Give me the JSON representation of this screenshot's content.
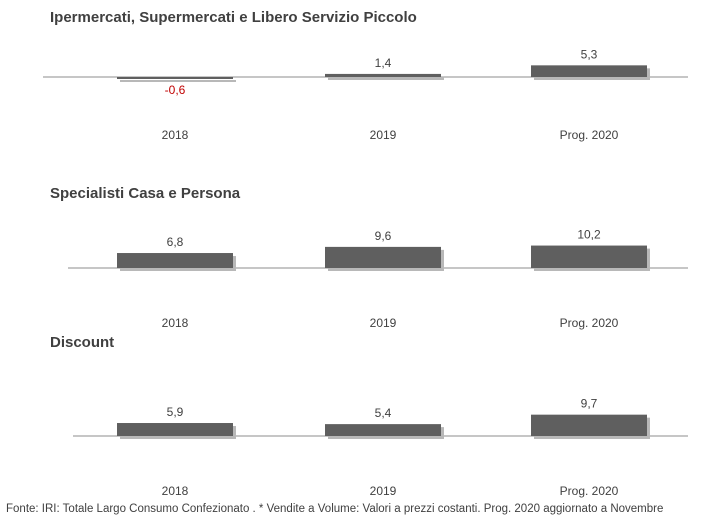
{
  "chart_data": [
    {
      "type": "bar",
      "title": "Ipermercati, Supermercati e Libero Servizio Piccolo",
      "categories": [
        "2018",
        "2019",
        "Prog. 2020"
      ],
      "values": [
        -0.6,
        1.4,
        5.3
      ],
      "value_labels": [
        "-0,6",
        "1,4",
        "5,3"
      ],
      "grid": false
    },
    {
      "type": "bar",
      "title": "Specialisti Casa e Persona",
      "categories": [
        "2018",
        "2019",
        "Prog. 2020"
      ],
      "values": [
        6.8,
        9.6,
        10.2
      ],
      "value_labels": [
        "6,8",
        "9,6",
        "10,2"
      ],
      "grid": false
    },
    {
      "type": "bar",
      "title": "Discount",
      "categories": [
        "2018",
        "2019",
        "Prog. 2020"
      ],
      "values": [
        5.9,
        5.4,
        9.7
      ],
      "value_labels": [
        "5,9",
        "5,4",
        "9,7"
      ],
      "grid": false
    }
  ],
  "colors": {
    "bar": "#5f5f5f",
    "bar_shadow": "#b8b8b8",
    "axis": "#8c8c8c",
    "text": "#404040",
    "negative_label": "#c00000"
  },
  "footer": {
    "note": "Fonte: IRI: Totale Largo Consumo Confezionato . * Vendite a Volume: Valori a prezzi costanti.    Prog. 2020 aggiornato a Novembre"
  }
}
